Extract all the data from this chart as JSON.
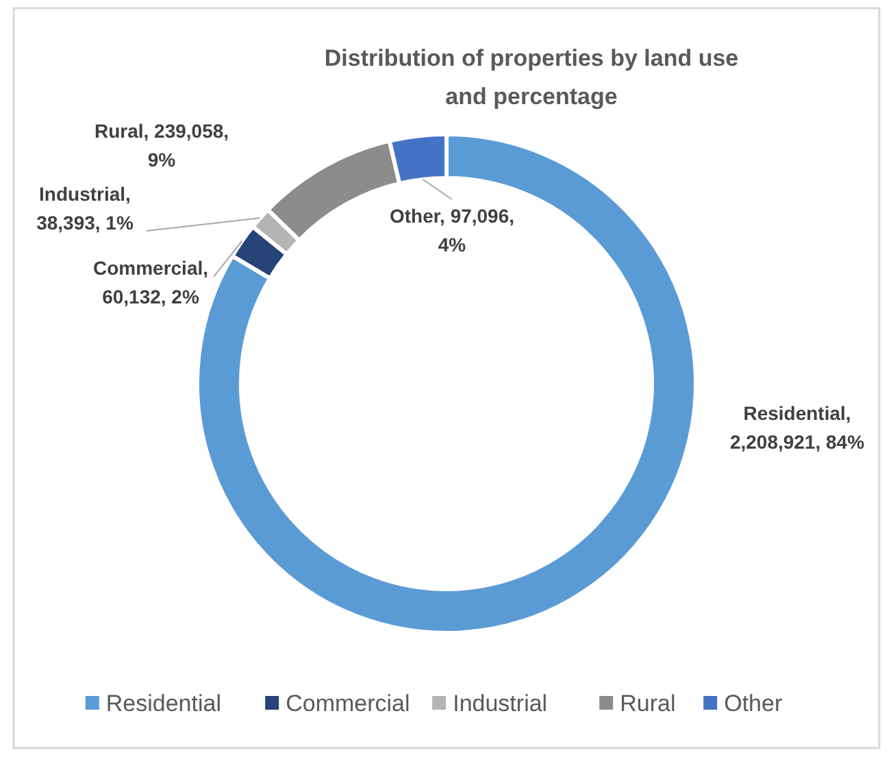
{
  "chart_data": {
    "type": "donut",
    "title": "Distribution of properties by land use and percentage",
    "categories": [
      "Residential",
      "Commercial",
      "Industrial",
      "Rural",
      "Other"
    ],
    "values": [
      2208921,
      60132,
      38393,
      239058,
      97096
    ],
    "colors": [
      "#5b9bd5",
      "#264478",
      "#b4b4b4",
      "#8c8c8c",
      "#4472c4"
    ],
    "value_labels": [
      "Residential, 2,208,921, 84%",
      "Commercial, 60,132, 2%",
      "Industrial, 38,393, 1%",
      "Rural, 239,058, 9%",
      "Other, 97,096, 4%"
    ],
    "legend": "bottom"
  }
}
